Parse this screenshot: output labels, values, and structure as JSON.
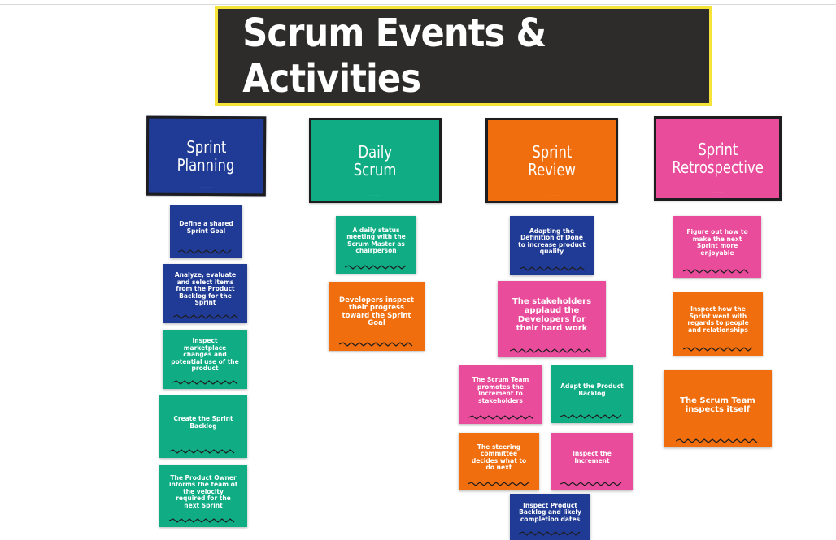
{
  "title": "Scrum Events & Activities",
  "colors": {
    "blue": "#203b95",
    "green": "#10ac84",
    "orange": "#f06e0d",
    "pink": "#e94c9b",
    "title_bg": "#2d2c2b",
    "title_border": "#f6e33a"
  },
  "columns": [
    {
      "title_line1": "Sprint",
      "title_line2": "Planning",
      "color": "blue",
      "notes": [
        "Define a shared Sprint Goal",
        "Analyze, evaluate and select items from the Product Backlog for the Sprint",
        "Inspect marketplace changes and potential use of the product",
        "Create the Sprint Backlog",
        "The Product Owner informs the team of the velocity required for the next Sprint"
      ]
    },
    {
      "title_line1": "Daily",
      "title_line2": "Scrum",
      "color": "green",
      "notes": [
        "A daily status meeting with the Scrum Master as chairperson",
        "Developers inspect their progress toward the Sprint Goal"
      ]
    },
    {
      "title_line1": "Sprint",
      "title_line2": "Review",
      "color": "orange",
      "notes": [
        "Adapting the Definition of Done to increase product quality",
        "The stakeholders applaud the Developers for their hard work",
        "The Scrum Team promotes the Increment to stakeholders",
        "Adapt the Product Backlog",
        "The steering committee decides what to do next",
        "Inspect the Increment",
        "Inspect Product Backlog and likely completion dates"
      ]
    },
    {
      "title_line1": "Sprint",
      "title_line2": "Retrospective",
      "color": "pink",
      "notes": [
        "Figure out how to make the next Sprint more enjoyable",
        "Inspect how the Sprint went with regards to people and relationships",
        "The Scrum Team inspects itself"
      ]
    }
  ]
}
